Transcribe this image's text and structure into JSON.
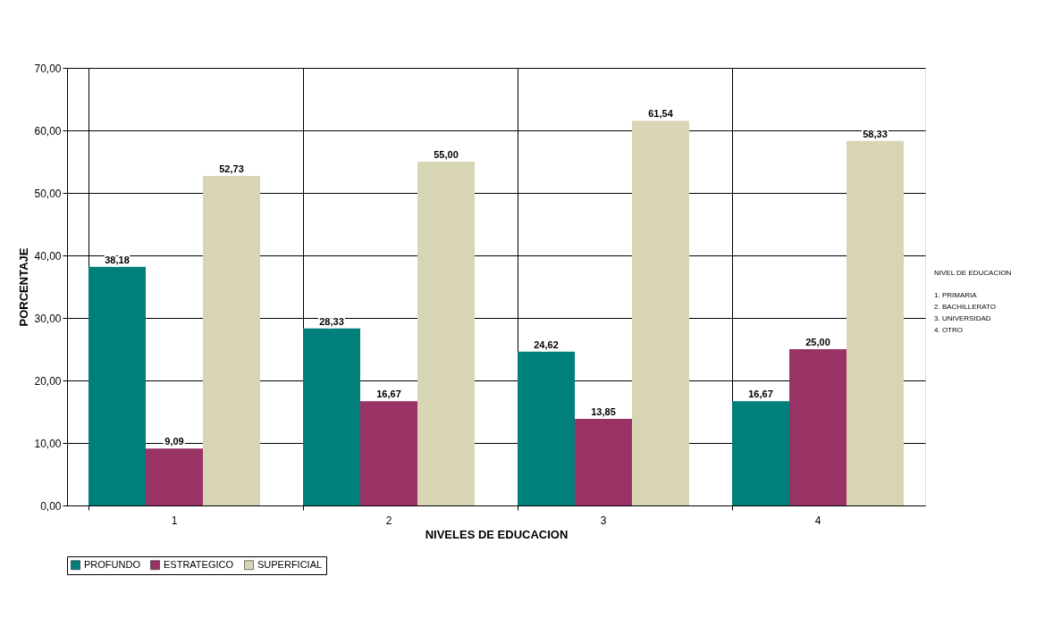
{
  "chart_data": {
    "type": "bar",
    "xlabel": "NIVELES DE EDUCACION",
    "ylabel": "PORCENTAJE",
    "categories": [
      "1",
      "2",
      "3",
      "4"
    ],
    "series": [
      {
        "name": "PROFUNDO",
        "color": "#007f7b",
        "values": [
          38.18,
          28.33,
          24.62,
          16.67
        ],
        "value_labels": [
          "38,18",
          "28,33",
          "24,62",
          "16,67"
        ]
      },
      {
        "name": "ESTRATEGICO",
        "color": "#993366",
        "values": [
          9.09,
          16.67,
          13.85,
          25.0
        ],
        "value_labels": [
          "9,09",
          "16,67",
          "13,85",
          "25,00"
        ]
      },
      {
        "name": "SUPERFICIAL",
        "color": "#d8d5b4",
        "values": [
          52.73,
          55.0,
          61.54,
          58.33
        ],
        "value_labels": [
          "52,73",
          "55,00",
          "61,54",
          "58,33"
        ]
      }
    ],
    "ylim": [
      0,
      70
    ],
    "yticks": [
      {
        "value": 0,
        "label": "0,00"
      },
      {
        "value": 10,
        "label": "10,00"
      },
      {
        "value": 20,
        "label": "20,00"
      },
      {
        "value": 30,
        "label": "30,00"
      },
      {
        "value": 40,
        "label": "40,00"
      },
      {
        "value": 50,
        "label": "50,00"
      },
      {
        "value": 60,
        "label": "60,00"
      },
      {
        "value": 70,
        "label": "70,00"
      }
    ],
    "data_labels": true,
    "grid": true,
    "legend": "bottom",
    "annotations": [
      "NIVEL DE EDUCACION",
      "1. PRIMARIA",
      "2. BACHILLERATO",
      "3. UNIVERSIDAD",
      "4. OTRO"
    ]
  }
}
